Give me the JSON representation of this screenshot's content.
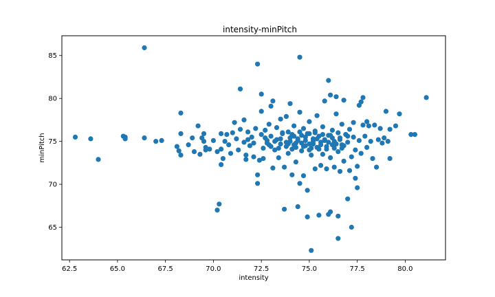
{
  "chart_data": {
    "type": "scatter",
    "title": "intensity-minPitch",
    "xlabel": "intensity",
    "ylabel": "minPitch",
    "xlim": [
      62.1,
      82.1
    ],
    "ylim": [
      61.2,
      87.3
    ],
    "xticks": [
      "62.5",
      "65.0",
      "67.5",
      "70.0",
      "72.5",
      "75.0",
      "77.5",
      "80.0"
    ],
    "yticks": [
      "65",
      "70",
      "75",
      "80",
      "85"
    ],
    "grid": false,
    "marker_color": "#1f77b4",
    "points": [
      [
        62.8,
        75.5
      ],
      [
        63.6,
        75.3
      ],
      [
        64.0,
        72.9
      ],
      [
        65.3,
        75.6
      ],
      [
        65.4,
        75.3
      ],
      [
        65.4,
        75.5
      ],
      [
        66.4,
        85.9
      ],
      [
        66.4,
        75.4
      ],
      [
        67.0,
        75.0
      ],
      [
        67.3,
        75.1
      ],
      [
        68.1,
        74.4
      ],
      [
        68.2,
        73.9
      ],
      [
        68.3,
        73.4
      ],
      [
        68.3,
        75.9
      ],
      [
        68.3,
        78.3
      ],
      [
        68.7,
        74.6
      ],
      [
        68.9,
        75.4
      ],
      [
        69.0,
        73.8
      ],
      [
        69.2,
        76.8
      ],
      [
        69.3,
        73.5
      ],
      [
        69.4,
        75.4
      ],
      [
        69.5,
        75.9
      ],
      [
        69.6,
        74.3
      ],
      [
        69.6,
        74.0
      ],
      [
        69.5,
        75.0
      ],
      [
        69.8,
        74.1
      ],
      [
        70.0,
        75.1
      ],
      [
        70.2,
        67.0
      ],
      [
        70.2,
        73.8
      ],
      [
        70.3,
        67.7
      ],
      [
        70.4,
        72.3
      ],
      [
        70.4,
        74.1
      ],
      [
        70.4,
        75.9
      ],
      [
        70.5,
        73.0
      ],
      [
        70.6,
        75.0
      ],
      [
        70.7,
        75.8
      ],
      [
        70.8,
        74.6
      ],
      [
        70.9,
        73.6
      ],
      [
        71.0,
        76.0
      ],
      [
        71.1,
        77.2
      ],
      [
        71.2,
        75.3
      ],
      [
        71.3,
        74.0
      ],
      [
        71.4,
        76.4
      ],
      [
        71.4,
        81.1
      ],
      [
        71.6,
        74.9
      ],
      [
        71.7,
        73.4
      ],
      [
        71.7,
        72.9
      ],
      [
        71.6,
        77.5
      ],
      [
        71.8,
        75.2
      ],
      [
        71.8,
        76.1
      ],
      [
        71.9,
        74.5
      ],
      [
        72.0,
        75.5
      ],
      [
        72.1,
        74.8
      ],
      [
        72.1,
        73.2
      ],
      [
        72.2,
        76.5
      ],
      [
        72.3,
        84.0
      ],
      [
        72.3,
        70.1
      ],
      [
        72.3,
        71.1
      ],
      [
        72.4,
        72.8
      ],
      [
        72.5,
        75.8
      ],
      [
        72.5,
        78.5
      ],
      [
        72.5,
        80.5
      ],
      [
        72.6,
        74.2
      ],
      [
        72.6,
        73.0
      ],
      [
        72.7,
        76.3
      ],
      [
        72.8,
        75.1
      ],
      [
        72.9,
        74.6
      ],
      [
        72.9,
        77.0
      ],
      [
        73.0,
        79.1
      ],
      [
        73.0,
        75.6
      ],
      [
        73.1,
        79.7
      ],
      [
        73.1,
        71.9
      ],
      [
        73.2,
        74.0
      ],
      [
        73.3,
        76.6
      ],
      [
        73.3,
        75.2
      ],
      [
        73.4,
        73.1
      ],
      [
        73.5,
        77.6
      ],
      [
        73.5,
        74.7
      ],
      [
        73.6,
        75.9
      ],
      [
        73.7,
        67.1
      ],
      [
        73.7,
        72.0
      ],
      [
        73.8,
        74.4
      ],
      [
        73.8,
        77.9
      ],
      [
        73.9,
        76.1
      ],
      [
        73.9,
        73.6
      ],
      [
        74.0,
        79.4
      ],
      [
        74.0,
        75.0
      ],
      [
        74.1,
        71.1
      ],
      [
        74.1,
        74.1
      ],
      [
        74.2,
        75.6
      ],
      [
        74.2,
        76.8
      ],
      [
        74.3,
        72.6
      ],
      [
        74.3,
        74.8
      ],
      [
        74.4,
        67.4
      ],
      [
        74.4,
        75.3
      ],
      [
        74.5,
        84.8
      ],
      [
        74.5,
        78.4
      ],
      [
        74.5,
        70.1
      ],
      [
        74.6,
        73.9
      ],
      [
        74.6,
        75.7
      ],
      [
        74.7,
        71.0
      ],
      [
        74.7,
        76.5
      ],
      [
        74.8,
        74.5
      ],
      [
        74.8,
        75.1
      ],
      [
        74.9,
        66.2
      ],
      [
        74.9,
        69.3
      ],
      [
        75.0,
        74.0
      ],
      [
        75.0,
        75.9
      ],
      [
        75.0,
        77.3
      ],
      [
        75.1,
        62.3
      ],
      [
        75.1,
        73.4
      ],
      [
        75.2,
        74.7
      ],
      [
        75.2,
        75.3
      ],
      [
        75.3,
        71.8
      ],
      [
        75.3,
        76.2
      ],
      [
        75.4,
        74.3
      ],
      [
        75.4,
        78.0
      ],
      [
        75.5,
        66.4
      ],
      [
        75.5,
        75.6
      ],
      [
        75.6,
        72.2
      ],
      [
        75.6,
        74.9
      ],
      [
        75.7,
        76.7
      ],
      [
        75.7,
        73.5
      ],
      [
        75.8,
        75.2
      ],
      [
        75.8,
        79.7
      ],
      [
        75.9,
        74.1
      ],
      [
        75.9,
        71.8
      ],
      [
        76.0,
        82.1
      ],
      [
        76.0,
        75.7
      ],
      [
        76.0,
        66.5
      ],
      [
        76.1,
        73.1
      ],
      [
        76.1,
        80.4
      ],
      [
        76.1,
        66.8
      ],
      [
        76.2,
        74.6
      ],
      [
        76.2,
        76.3
      ],
      [
        76.3,
        72.0
      ],
      [
        76.3,
        75.0
      ],
      [
        76.4,
        78.2
      ],
      [
        76.4,
        80.2
      ],
      [
        76.5,
        63.7
      ],
      [
        76.5,
        66.3
      ],
      [
        76.5,
        73.8
      ],
      [
        76.6,
        75.4
      ],
      [
        76.6,
        71.5
      ],
      [
        76.7,
        77.0
      ],
      [
        76.7,
        74.2
      ],
      [
        76.8,
        79.8
      ],
      [
        76.8,
        72.7
      ],
      [
        76.9,
        75.8
      ],
      [
        77.0,
        68.3
      ],
      [
        77.0,
        74.9
      ],
      [
        77.1,
        76.4
      ],
      [
        77.1,
        71.6
      ],
      [
        77.2,
        65.0
      ],
      [
        77.2,
        73.2
      ],
      [
        77.3,
        75.5
      ],
      [
        77.3,
        77.2
      ],
      [
        77.4,
        74.0
      ],
      [
        77.4,
        70.7
      ],
      [
        77.5,
        72.1
      ],
      [
        77.5,
        69.6
      ],
      [
        77.6,
        79.2
      ],
      [
        77.6,
        75.1
      ],
      [
        77.7,
        73.6
      ],
      [
        77.7,
        79.6
      ],
      [
        77.8,
        80.1
      ],
      [
        77.8,
        76.9
      ],
      [
        77.9,
        75.6
      ],
      [
        78.0,
        74.3
      ],
      [
        78.0,
        77.3
      ],
      [
        78.1,
        76.8
      ],
      [
        78.2,
        75.0
      ],
      [
        78.3,
        73.0
      ],
      [
        78.4,
        76.9
      ],
      [
        78.5,
        72.0
      ],
      [
        78.6,
        75.2
      ],
      [
        78.7,
        76.5
      ],
      [
        78.8,
        74.8
      ],
      [
        78.9,
        75.4
      ],
      [
        79.0,
        78.5
      ],
      [
        79.1,
        75.0
      ],
      [
        79.2,
        73.0
      ],
      [
        79.2,
        76.4
      ],
      [
        79.5,
        76.8
      ],
      [
        79.7,
        78.2
      ],
      [
        80.3,
        75.8
      ],
      [
        80.5,
        75.8
      ],
      [
        81.1,
        80.1
      ],
      [
        73.2,
        75.0
      ],
      [
        73.5,
        75.3
      ],
      [
        73.8,
        74.9
      ],
      [
        74.0,
        75.4
      ],
      [
        74.2,
        74.6
      ],
      [
        74.4,
        75.1
      ],
      [
        74.6,
        74.8
      ],
      [
        74.8,
        75.5
      ],
      [
        75.0,
        74.7
      ],
      [
        75.2,
        75.0
      ],
      [
        75.4,
        75.3
      ],
      [
        75.6,
        74.6
      ],
      [
        75.8,
        75.1
      ],
      [
        76.0,
        74.9
      ],
      [
        76.2,
        75.4
      ],
      [
        76.4,
        74.7
      ],
      [
        76.6,
        75.2
      ],
      [
        76.8,
        74.5
      ],
      [
        77.0,
        75.6
      ],
      [
        73.4,
        74.2
      ],
      [
        73.6,
        76.0
      ],
      [
        73.9,
        74.7
      ],
      [
        74.1,
        75.8
      ],
      [
        74.3,
        74.3
      ],
      [
        74.5,
        76.1
      ],
      [
        74.7,
        74.4
      ],
      [
        74.9,
        75.9
      ],
      [
        75.1,
        74.2
      ],
      [
        75.3,
        76.0
      ],
      [
        75.5,
        74.1
      ],
      [
        75.7,
        75.8
      ],
      [
        75.9,
        74.4
      ],
      [
        76.1,
        75.7
      ],
      [
        76.3,
        74.2
      ],
      [
        76.5,
        76.0
      ],
      [
        76.7,
        74.6
      ],
      [
        76.9,
        75.8
      ],
      [
        72.8,
        74.8
      ],
      [
        72.7,
        75.4
      ],
      [
        73.0,
        74.4
      ]
    ]
  }
}
